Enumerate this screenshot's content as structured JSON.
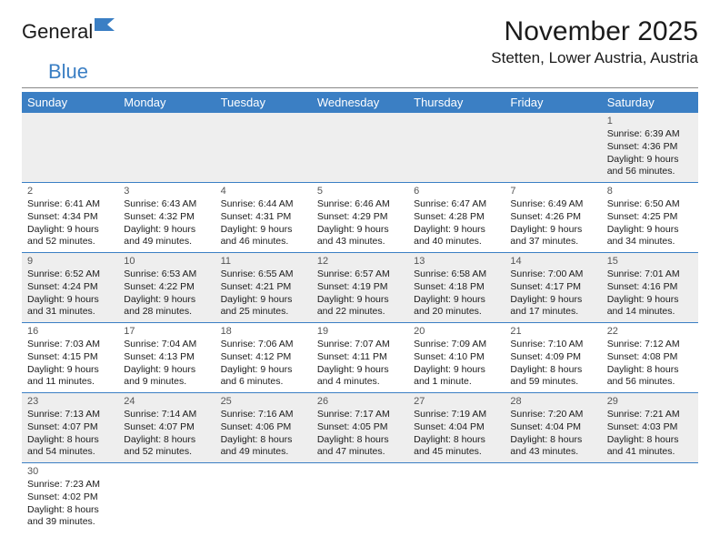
{
  "logo": {
    "text1": "Genera",
    "text2": "l",
    "text3": "Blue"
  },
  "title": "November 2025",
  "location": "Stetten, Lower Austria, Austria",
  "colors": {
    "header_bg": "#3b7fc4",
    "header_text": "#ffffff",
    "rule": "#3b7fc4",
    "alt_row_bg": "#eeeeee",
    "text": "#1b1b1b"
  },
  "day_headers": [
    "Sunday",
    "Monday",
    "Tuesday",
    "Wednesday",
    "Thursday",
    "Friday",
    "Saturday"
  ],
  "weeks": [
    {
      "alt": true,
      "days": [
        null,
        null,
        null,
        null,
        null,
        null,
        {
          "n": "1",
          "sr": "Sunrise: 6:39 AM",
          "ss": "Sunset: 4:36 PM",
          "d1": "Daylight: 9 hours",
          "d2": "and 56 minutes."
        }
      ]
    },
    {
      "alt": false,
      "days": [
        {
          "n": "2",
          "sr": "Sunrise: 6:41 AM",
          "ss": "Sunset: 4:34 PM",
          "d1": "Daylight: 9 hours",
          "d2": "and 52 minutes."
        },
        {
          "n": "3",
          "sr": "Sunrise: 6:43 AM",
          "ss": "Sunset: 4:32 PM",
          "d1": "Daylight: 9 hours",
          "d2": "and 49 minutes."
        },
        {
          "n": "4",
          "sr": "Sunrise: 6:44 AM",
          "ss": "Sunset: 4:31 PM",
          "d1": "Daylight: 9 hours",
          "d2": "and 46 minutes."
        },
        {
          "n": "5",
          "sr": "Sunrise: 6:46 AM",
          "ss": "Sunset: 4:29 PM",
          "d1": "Daylight: 9 hours",
          "d2": "and 43 minutes."
        },
        {
          "n": "6",
          "sr": "Sunrise: 6:47 AM",
          "ss": "Sunset: 4:28 PM",
          "d1": "Daylight: 9 hours",
          "d2": "and 40 minutes."
        },
        {
          "n": "7",
          "sr": "Sunrise: 6:49 AM",
          "ss": "Sunset: 4:26 PM",
          "d1": "Daylight: 9 hours",
          "d2": "and 37 minutes."
        },
        {
          "n": "8",
          "sr": "Sunrise: 6:50 AM",
          "ss": "Sunset: 4:25 PM",
          "d1": "Daylight: 9 hours",
          "d2": "and 34 minutes."
        }
      ]
    },
    {
      "alt": true,
      "days": [
        {
          "n": "9",
          "sr": "Sunrise: 6:52 AM",
          "ss": "Sunset: 4:24 PM",
          "d1": "Daylight: 9 hours",
          "d2": "and 31 minutes."
        },
        {
          "n": "10",
          "sr": "Sunrise: 6:53 AM",
          "ss": "Sunset: 4:22 PM",
          "d1": "Daylight: 9 hours",
          "d2": "and 28 minutes."
        },
        {
          "n": "11",
          "sr": "Sunrise: 6:55 AM",
          "ss": "Sunset: 4:21 PM",
          "d1": "Daylight: 9 hours",
          "d2": "and 25 minutes."
        },
        {
          "n": "12",
          "sr": "Sunrise: 6:57 AM",
          "ss": "Sunset: 4:19 PM",
          "d1": "Daylight: 9 hours",
          "d2": "and 22 minutes."
        },
        {
          "n": "13",
          "sr": "Sunrise: 6:58 AM",
          "ss": "Sunset: 4:18 PM",
          "d1": "Daylight: 9 hours",
          "d2": "and 20 minutes."
        },
        {
          "n": "14",
          "sr": "Sunrise: 7:00 AM",
          "ss": "Sunset: 4:17 PM",
          "d1": "Daylight: 9 hours",
          "d2": "and 17 minutes."
        },
        {
          "n": "15",
          "sr": "Sunrise: 7:01 AM",
          "ss": "Sunset: 4:16 PM",
          "d1": "Daylight: 9 hours",
          "d2": "and 14 minutes."
        }
      ]
    },
    {
      "alt": false,
      "days": [
        {
          "n": "16",
          "sr": "Sunrise: 7:03 AM",
          "ss": "Sunset: 4:15 PM",
          "d1": "Daylight: 9 hours",
          "d2": "and 11 minutes."
        },
        {
          "n": "17",
          "sr": "Sunrise: 7:04 AM",
          "ss": "Sunset: 4:13 PM",
          "d1": "Daylight: 9 hours",
          "d2": "and 9 minutes."
        },
        {
          "n": "18",
          "sr": "Sunrise: 7:06 AM",
          "ss": "Sunset: 4:12 PM",
          "d1": "Daylight: 9 hours",
          "d2": "and 6 minutes."
        },
        {
          "n": "19",
          "sr": "Sunrise: 7:07 AM",
          "ss": "Sunset: 4:11 PM",
          "d1": "Daylight: 9 hours",
          "d2": "and 4 minutes."
        },
        {
          "n": "20",
          "sr": "Sunrise: 7:09 AM",
          "ss": "Sunset: 4:10 PM",
          "d1": "Daylight: 9 hours",
          "d2": "and 1 minute."
        },
        {
          "n": "21",
          "sr": "Sunrise: 7:10 AM",
          "ss": "Sunset: 4:09 PM",
          "d1": "Daylight: 8 hours",
          "d2": "and 59 minutes."
        },
        {
          "n": "22",
          "sr": "Sunrise: 7:12 AM",
          "ss": "Sunset: 4:08 PM",
          "d1": "Daylight: 8 hours",
          "d2": "and 56 minutes."
        }
      ]
    },
    {
      "alt": true,
      "days": [
        {
          "n": "23",
          "sr": "Sunrise: 7:13 AM",
          "ss": "Sunset: 4:07 PM",
          "d1": "Daylight: 8 hours",
          "d2": "and 54 minutes."
        },
        {
          "n": "24",
          "sr": "Sunrise: 7:14 AM",
          "ss": "Sunset: 4:07 PM",
          "d1": "Daylight: 8 hours",
          "d2": "and 52 minutes."
        },
        {
          "n": "25",
          "sr": "Sunrise: 7:16 AM",
          "ss": "Sunset: 4:06 PM",
          "d1": "Daylight: 8 hours",
          "d2": "and 49 minutes."
        },
        {
          "n": "26",
          "sr": "Sunrise: 7:17 AM",
          "ss": "Sunset: 4:05 PM",
          "d1": "Daylight: 8 hours",
          "d2": "and 47 minutes."
        },
        {
          "n": "27",
          "sr": "Sunrise: 7:19 AM",
          "ss": "Sunset: 4:04 PM",
          "d1": "Daylight: 8 hours",
          "d2": "and 45 minutes."
        },
        {
          "n": "28",
          "sr": "Sunrise: 7:20 AM",
          "ss": "Sunset: 4:04 PM",
          "d1": "Daylight: 8 hours",
          "d2": "and 43 minutes."
        },
        {
          "n": "29",
          "sr": "Sunrise: 7:21 AM",
          "ss": "Sunset: 4:03 PM",
          "d1": "Daylight: 8 hours",
          "d2": "and 41 minutes."
        }
      ]
    },
    {
      "alt": false,
      "last": true,
      "days": [
        {
          "n": "30",
          "sr": "Sunrise: 7:23 AM",
          "ss": "Sunset: 4:02 PM",
          "d1": "Daylight: 8 hours",
          "d2": "and 39 minutes."
        },
        null,
        null,
        null,
        null,
        null,
        null
      ]
    }
  ]
}
